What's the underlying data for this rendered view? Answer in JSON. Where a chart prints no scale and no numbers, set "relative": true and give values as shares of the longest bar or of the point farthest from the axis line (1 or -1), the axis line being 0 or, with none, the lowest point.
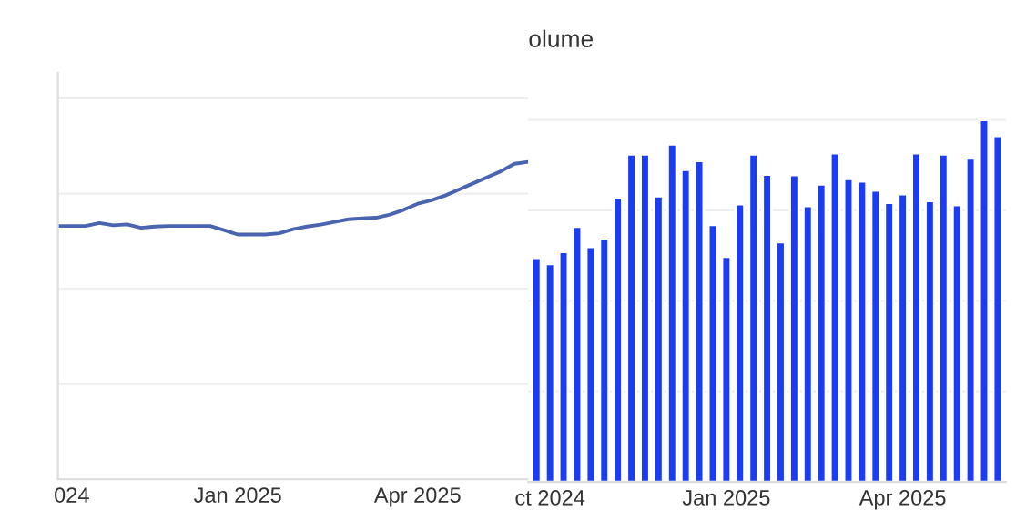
{
  "chart_data": [
    {
      "type": "line",
      "relative": true,
      "tick_labels": "x",
      "grid": "y",
      "legend": false,
      "categories": [
        null,
        "024",
        null,
        null,
        null,
        null,
        null,
        null,
        null,
        null,
        null,
        null,
        null,
        "Jan 2025",
        null,
        null,
        null,
        null,
        null,
        null,
        null,
        null,
        null,
        null,
        null,
        null,
        "Apr 2025",
        null,
        null,
        null,
        null,
        null,
        null,
        null,
        null
      ],
      "series": [
        {
          "color": "#4a64b0",
          "values": [
            0.798,
            0.798,
            0.798,
            0.807,
            0.8,
            0.803,
            0.792,
            0.796,
            0.798,
            0.798,
            0.798,
            0.798,
            0.785,
            0.771,
            0.771,
            0.771,
            0.775,
            0.788,
            0.796,
            0.802,
            0.811,
            0.819,
            0.822,
            0.824,
            0.834,
            0.849,
            0.868,
            0.879,
            0.894,
            0.913,
            0.932,
            0.951,
            0.97,
            0.994,
            1
          ]
        }
      ]
    },
    {
      "type": "bar",
      "relative": true,
      "title": "olume",
      "tick_labels": "x",
      "grid": "y",
      "legend": false,
      "categories": [
        null,
        "ct 2024",
        null,
        null,
        null,
        null,
        null,
        null,
        null,
        null,
        null,
        null,
        null,
        null,
        "Jan 2025",
        null,
        null,
        null,
        null,
        null,
        null,
        null,
        null,
        null,
        null,
        null,
        null,
        "Apr 2025",
        null,
        null,
        null,
        null,
        null,
        null,
        null
      ],
      "series": [
        {
          "color": "#1a3cf5",
          "values": [
            0.619,
            0.602,
            0.635,
            0.705,
            0.649,
            0.673,
            0.786,
            0.905,
            0.905,
            0.789,
            0.933,
            0.862,
            0.887,
            0.71,
            0.622,
            0.767,
            0.905,
            0.849,
            0.662,
            0.848,
            0.762,
            0.822,
            0.908,
            0.837,
            0.83,
            0.805,
            0.771,
            0.795,
            0.908,
            0.776,
            0.905,
            0.765,
            0.894,
            1,
            0.956
          ]
        }
      ]
    }
  ]
}
